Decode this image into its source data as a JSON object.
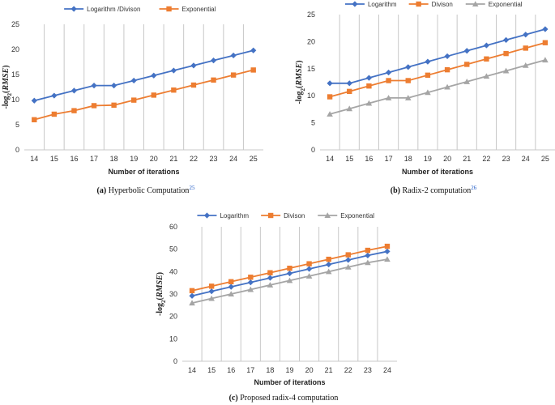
{
  "chart_data": [
    {
      "type": "line",
      "xlabel": "Number of iterations",
      "ylabel": "-log2(RMSE)",
      "ylim": [
        0,
        25
      ],
      "yticks": [
        0,
        5,
        10,
        15,
        20,
        25
      ],
      "categories": [
        "14",
        "15",
        "16",
        "17",
        "18",
        "19",
        "20",
        "21",
        "22",
        "23",
        "24",
        "25"
      ],
      "series": [
        {
          "name": "Logarithm /Divison",
          "color": "#4472c4",
          "marker": "diamond",
          "values": [
            9.8,
            10.8,
            11.8,
            12.8,
            12.8,
            13.8,
            14.8,
            15.8,
            16.8,
            17.8,
            18.8,
            19.8
          ]
        },
        {
          "name": "Exponential",
          "color": "#ed7d31",
          "marker": "square",
          "values": [
            6,
            7.1,
            7.8,
            8.8,
            8.9,
            9.9,
            10.9,
            11.9,
            12.9,
            13.9,
            14.9,
            15.9
          ]
        }
      ],
      "grid": "vertical",
      "legend": "top",
      "caption": {
        "label": "(a)",
        "text": "Hyperbolic Computation",
        "ref": "25"
      }
    },
    {
      "type": "line",
      "xlabel": "Number of iterations",
      "ylabel": "-log2(RMSE)",
      "ylim": [
        0,
        25
      ],
      "yticks": [
        0,
        5,
        10,
        15,
        20,
        25
      ],
      "categories": [
        "14",
        "15",
        "16",
        "17",
        "18",
        "19",
        "20",
        "21",
        "22",
        "23",
        "24",
        "25"
      ],
      "series": [
        {
          "name": "Logarithm",
          "color": "#4472c4",
          "marker": "diamond",
          "values": [
            12.3,
            12.3,
            13.3,
            14.3,
            15.3,
            16.3,
            17.3,
            18.3,
            19.3,
            20.3,
            21.3,
            22.3
          ]
        },
        {
          "name": "Divison",
          "color": "#ed7d31",
          "marker": "square",
          "values": [
            9.8,
            10.8,
            11.8,
            12.8,
            12.8,
            13.8,
            14.8,
            15.8,
            16.8,
            17.8,
            18.8,
            19.8
          ]
        },
        {
          "name": "Exponential",
          "color": "#a5a5a5",
          "marker": "triangle",
          "values": [
            6.6,
            7.6,
            8.6,
            9.6,
            9.6,
            10.6,
            11.6,
            12.6,
            13.6,
            14.6,
            15.6,
            16.6
          ]
        }
      ],
      "grid": "vertical",
      "legend": "top",
      "caption": {
        "label": "(b)",
        "text": "Radix-2 computation",
        "ref": "26"
      }
    },
    {
      "type": "line",
      "xlabel": "Number of iterations",
      "ylabel": "-log2(RMSE)",
      "ylim": [
        0,
        60
      ],
      "yticks": [
        0,
        10,
        20,
        30,
        40,
        50,
        60
      ],
      "categories": [
        "14",
        "15",
        "16",
        "17",
        "18",
        "19",
        "20",
        "21",
        "22",
        "23",
        "24"
      ],
      "series": [
        {
          "name": "Logarithm",
          "color": "#4472c4",
          "marker": "diamond",
          "values": [
            29.2,
            31.2,
            33.2,
            35.2,
            37.2,
            39.2,
            41.2,
            43.2,
            45.2,
            47.2,
            49
          ]
        },
        {
          "name": "Divison",
          "color": "#ed7d31",
          "marker": "square",
          "values": [
            31.5,
            33.5,
            35.5,
            37.5,
            39.5,
            41.5,
            43.5,
            45.5,
            47.5,
            49.5,
            51.3
          ]
        },
        {
          "name": "Exponential",
          "color": "#a5a5a5",
          "marker": "triangle",
          "values": [
            26,
            28,
            30,
            32,
            34,
            36,
            38,
            40,
            42,
            44,
            45.5
          ]
        }
      ],
      "grid": "vertical",
      "legend": "top",
      "caption": {
        "label": "(c)",
        "text": "Proposed radix-4 computation",
        "ref": ""
      }
    }
  ]
}
